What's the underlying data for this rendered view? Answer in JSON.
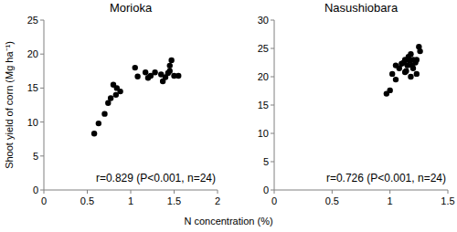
{
  "chart_data": [
    {
      "type": "scatter",
      "title": "Morioka",
      "x_label": "N concentration (%)",
      "y_label": "Shoot yield of corn (Mg ha⁻¹)",
      "annotation": "r=0.829 (P<0.001, n=24)",
      "color": "#000000",
      "marker": "circle",
      "grid": false,
      "x": [
        0.58,
        0.63,
        0.7,
        0.74,
        0.77,
        0.8,
        0.83,
        0.84,
        0.88,
        1.05,
        1.08,
        1.17,
        1.2,
        1.23,
        1.28,
        1.35,
        1.37,
        1.4,
        1.43,
        1.45,
        1.47,
        1.5,
        1.45,
        1.55
      ],
      "values": [
        8.3,
        9.8,
        11.2,
        12.8,
        13.5,
        15.5,
        14.0,
        15.0,
        14.5,
        18.0,
        16.7,
        17.3,
        16.5,
        16.8,
        17.3,
        17.0,
        16.0,
        16.6,
        17.2,
        18.3,
        19.1,
        16.8,
        17.5,
        16.8
      ],
      "xlim": [
        0,
        2
      ],
      "xticks": [
        0,
        0.5,
        1,
        1.5,
        2
      ],
      "ylim": [
        0,
        25
      ],
      "yticks": [
        0,
        5,
        10,
        15,
        20,
        25
      ]
    },
    {
      "type": "scatter",
      "title": "Nasushiobara",
      "annotation": "r=0.726 (P<0.001, n=24)",
      "color": "#000000",
      "marker": "circle",
      "grid": false,
      "x": [
        0.97,
        1.0,
        1.02,
        1.05,
        1.05,
        1.08,
        1.1,
        1.12,
        1.13,
        1.14,
        1.15,
        1.16,
        1.17,
        1.18,
        1.18,
        1.19,
        1.2,
        1.2,
        1.22,
        1.23,
        1.23,
        1.25,
        1.26,
        1.13
      ],
      "values": [
        17.0,
        17.6,
        20.5,
        19.5,
        22.0,
        21.5,
        22.3,
        22.5,
        23.0,
        21.0,
        22.0,
        23.5,
        22.8,
        20.0,
        24.0,
        22.0,
        23.0,
        21.5,
        22.5,
        20.5,
        23.0,
        25.3,
        24.5,
        20.8
      ],
      "xlim": [
        0,
        1.5
      ],
      "xticks": [
        0,
        0.5,
        1,
        1.5
      ],
      "ylim": [
        0,
        30
      ],
      "yticks": [
        0,
        5,
        10,
        15,
        20,
        25,
        30
      ]
    }
  ]
}
